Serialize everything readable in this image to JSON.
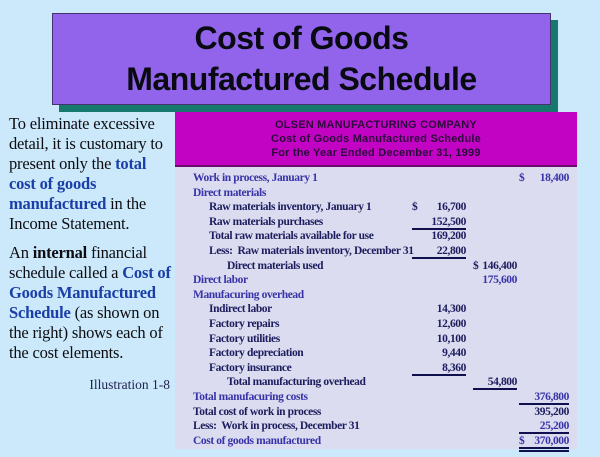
{
  "slide": {
    "title_line1": "Cost of Goods",
    "title_line2": "Manufactured Schedule"
  },
  "sidebar": {
    "paragraphs": [
      {
        "segments": [
          {
            "t": "To eliminate excessive detail, it is customary to present only the "
          },
          {
            "t": "total cost of goods manufactured",
            "style": "blue-bold"
          },
          {
            "t": " in the Income Statement."
          }
        ]
      },
      {
        "segments": [
          {
            "t": "An "
          },
          {
            "t": "internal",
            "style": "bold"
          },
          {
            "t": " financial schedule called a "
          },
          {
            "t": "Cost of Goods Manufactured Schedule",
            "style": "blue-bold"
          },
          {
            "t": " (as shown on the right) shows each of the cost elements."
          }
        ]
      }
    ],
    "caption": "Illustration 1-8"
  },
  "schedule": {
    "company": "OLSEN MANUFACTURING COMPANY",
    "subtitle": "Cost of Goods Manufactured Schedule",
    "period": "For the Year Ended December 31, 1999",
    "rows": [
      {
        "label": "Work in process, January 1",
        "indent": 0,
        "emph": true,
        "col": 3,
        "dollar": true,
        "value": "18,400",
        "line": "none"
      },
      {
        "label": "Direct materials",
        "indent": 0,
        "emph": true,
        "col": 0
      },
      {
        "label": "Raw materials inventory, January 1",
        "indent": 1,
        "emph": false,
        "col": 1,
        "dollar": true,
        "value": "16,700",
        "line": "none"
      },
      {
        "label": "Raw materials purchases",
        "indent": 1,
        "emph": false,
        "col": 1,
        "value": "152,500",
        "line": "single"
      },
      {
        "label": "Total raw materials available for use",
        "indent": 1,
        "emph": false,
        "col": 1,
        "value": "169,200",
        "line": "none"
      },
      {
        "label": "Less:  Raw materials inventory, December 31",
        "indent": 1,
        "emph": false,
        "col": 1,
        "value": "22,800",
        "line": "single"
      },
      {
        "label": "Direct materials used",
        "indent": 2,
        "emph": false,
        "col": 2,
        "dollar": true,
        "value": "146,400",
        "line": "none"
      },
      {
        "label": "Direct labor",
        "indent": 0,
        "emph": true,
        "col": 2,
        "value": "175,600",
        "line": "none"
      },
      {
        "label": "Manufacuring overhead",
        "indent": 0,
        "emph": true,
        "col": 0
      },
      {
        "label": "Indirect labor",
        "indent": 1,
        "emph": false,
        "col": 1,
        "value": "14,300",
        "line": "none"
      },
      {
        "label": "Factory repairs",
        "indent": 1,
        "emph": false,
        "col": 1,
        "value": "12,600",
        "line": "none"
      },
      {
        "label": "Factory utilities",
        "indent": 1,
        "emph": false,
        "col": 1,
        "value": "10,100",
        "line": "none"
      },
      {
        "label": "Factory depreciation",
        "indent": 1,
        "emph": false,
        "col": 1,
        "value": "9,440",
        "line": "none"
      },
      {
        "label": "Factory insurance",
        "indent": 1,
        "emph": false,
        "col": 1,
        "value": "8,360",
        "line": "single"
      },
      {
        "label": "Total manufacturing overhead",
        "indent": 2,
        "emph": false,
        "col": 2,
        "value": "54,800",
        "line": "single"
      },
      {
        "label": "Total manufacuring costs",
        "indent": 0,
        "emph": true,
        "col": 3,
        "value": "376,800",
        "line": "single"
      },
      {
        "label": "Total cost of work in process",
        "indent": 0,
        "emph": false,
        "col": 3,
        "value": "395,200",
        "line": "none"
      },
      {
        "label": "Less:  Work in process, December 31",
        "indent": 0,
        "emph": false,
        "col": 3,
        "value": "25,200",
        "line": "single",
        "value_emph": true
      },
      {
        "label": "Cost of goods manufactured",
        "indent": 0,
        "emph": true,
        "col": 3,
        "dollar": true,
        "value": "370,000",
        "line": "double"
      }
    ]
  },
  "colors": {
    "background": "#CBE9FB",
    "title_banner": "#9164EB",
    "title_shadow": "#17786E",
    "schedule_header_bg": "#C303C3",
    "schedule_body_bg": "#DBDCEF",
    "text_navy": "#1C1C5E",
    "text_blue_emphasis": "#3833A8",
    "sidebar_blue_bold": "#1B3EA8"
  }
}
